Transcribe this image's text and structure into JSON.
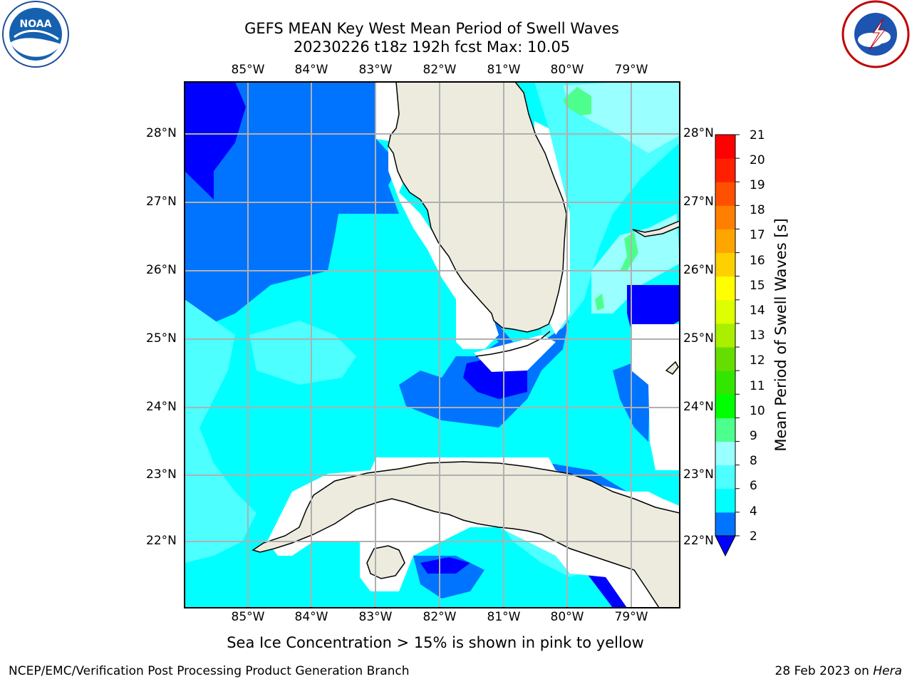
{
  "header": {
    "title_line1": "GEFS MEAN Key West Mean Period of Swell Waves",
    "title_line2": "20230226 t18z 192h fcst   Max: 10.05"
  },
  "logos": {
    "left": "noaa-logo",
    "right": "nws-logo"
  },
  "map": {
    "lon_labels": [
      "85°W",
      "84°W",
      "83°W",
      "82°W",
      "81°W",
      "80°W",
      "79°W"
    ],
    "lat_labels": [
      "28°N",
      "27°N",
      "26°N",
      "25°N",
      "24°N",
      "23°N",
      "22°N"
    ],
    "land_color": "#ecebde",
    "coast_color": "#000000",
    "grid_color": "#b0b0b0"
  },
  "colorbar": {
    "label": "Mean Period of Swell Waves [s]",
    "ticks": [
      "2",
      "4",
      "6",
      "8",
      "9",
      "10",
      "11",
      "12",
      "13",
      "14",
      "15",
      "16",
      "17",
      "18",
      "19",
      "20",
      "21"
    ],
    "colors": [
      "#0000ff",
      "#0073ff",
      "#00ffff",
      "#4dffff",
      "#99ffff",
      "#4dff8c",
      "#00ff00",
      "#33e600",
      "#66dd00",
      "#aaee00",
      "#ddff00",
      "#ffff00",
      "#ffd000",
      "#ffa500",
      "#ff8000",
      "#ff5000",
      "#ff2000",
      "#ff0000"
    ]
  },
  "footer": {
    "note": "Sea Ice Concentration > 15% is shown in pink to yellow",
    "left": "NCEP/EMC/Verification Post Processing Product Generation Branch",
    "date": "28 Feb 2023 on ",
    "machine": "Hera"
  }
}
